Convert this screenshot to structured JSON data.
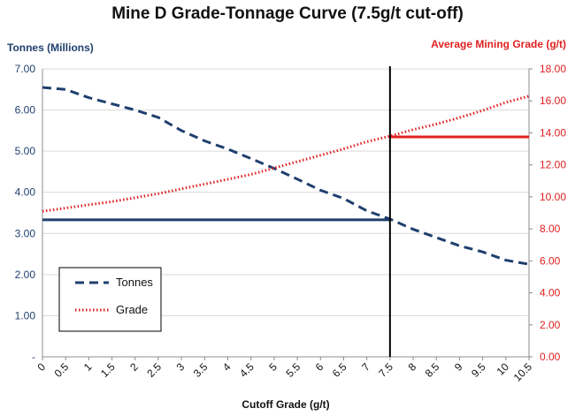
{
  "chart_data": {
    "type": "line",
    "title": "Mine D Grade-Tonnage Curve (7.5g/t  cut-off)",
    "xlabel": "Cutoff Grade (g/t)",
    "ylabel_left": "Tonnes (Millions)",
    "ylabel_right": "Average Mining Grade (g/t)",
    "x": [
      0,
      0.5,
      1,
      1.5,
      2,
      2.5,
      3,
      3.5,
      4,
      4.5,
      5,
      5.5,
      6,
      6.5,
      7,
      7.5,
      8,
      8.5,
      9,
      9.5,
      10,
      10.5
    ],
    "x_tick_labels": [
      "0",
      "0.5",
      "1",
      "1.5",
      "2",
      "2.5",
      "3",
      "3.5",
      "4",
      "4.5",
      "5",
      "5.5",
      "6",
      "6.5",
      "7",
      "7.5",
      "8",
      "8.5",
      "9",
      "9.5",
      "10",
      "10.5"
    ],
    "y_left_tick_labels": [
      "-",
      "1.00",
      "2.00",
      "3.00",
      "4.00",
      "5.00",
      "6.00",
      "7.00"
    ],
    "y_right_tick_labels": [
      "0.00",
      "2.00",
      "4.00",
      "6.00",
      "8.00",
      "10.00",
      "12.00",
      "14.00",
      "16.00",
      "18.00"
    ],
    "ylim_left": [
      0,
      7
    ],
    "ylim_right": [
      0,
      18
    ],
    "series": [
      {
        "name": "Tonnes",
        "axis": "left",
        "color": "#1f3f6e",
        "style": "dashed",
        "values": [
          6.55,
          6.5,
          6.3,
          6.15,
          6.0,
          5.82,
          5.5,
          5.25,
          5.05,
          4.82,
          4.58,
          4.32,
          4.05,
          3.85,
          3.55,
          3.35,
          3.1,
          2.9,
          2.7,
          2.55,
          2.35,
          2.25
        ]
      },
      {
        "name": "Grade",
        "axis": "right",
        "color": "#e02020",
        "style": "dotted",
        "values": [
          9.1,
          9.3,
          9.5,
          9.7,
          9.95,
          10.2,
          10.5,
          10.8,
          11.1,
          11.4,
          11.8,
          12.2,
          12.6,
          13.0,
          13.45,
          13.8,
          14.2,
          14.55,
          14.95,
          15.4,
          15.9,
          16.3
        ]
      }
    ],
    "cutoff_marker": {
      "x": 7.5,
      "tonnes": 3.33,
      "grade": 13.75,
      "vertical_color": "#000000",
      "tonnes_color": "#1f3f6e",
      "grade_color": "#e02020"
    },
    "legend": {
      "position": "bottom-left"
    },
    "left_axis_color": "#1f3f6e",
    "right_axis_color": "#e02020",
    "grid": "horizontal"
  }
}
